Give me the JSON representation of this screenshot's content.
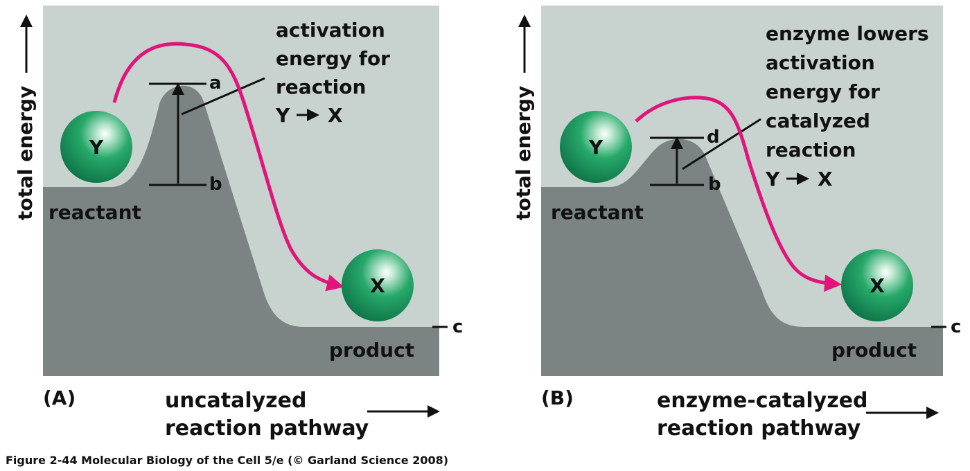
{
  "figure_caption": "Figure 2-44  Molecular Biology of the Cell 5/e (© Garland Science 2008)",
  "colors": {
    "panel_background": "#c8d2ce",
    "energy_hill": "#7b8482",
    "reaction_path": "#e0147a",
    "molecule": "#149a5c",
    "text": "#111111"
  },
  "panel_a": {
    "panel_label": "(A)",
    "y_axis_label": "total energy",
    "x_axis_label_line1": "uncatalyzed",
    "x_axis_label_line2": "reaction pathway",
    "reactant_label": "reactant",
    "product_label": "product",
    "reactant_molecule": "Y",
    "product_molecule": "X",
    "marker_top": "a",
    "marker_bottom": "b",
    "marker_product": "c",
    "annotation_lines": [
      "activation",
      "energy for",
      "reaction"
    ],
    "reaction_equation_left": "Y",
    "reaction_equation_right": "X"
  },
  "panel_b": {
    "panel_label": "(B)",
    "y_axis_label": "total energy",
    "x_axis_label_line1": "enzyme-catalyzed",
    "x_axis_label_line2": "reaction pathway",
    "reactant_label": "reactant",
    "product_label": "product",
    "reactant_molecule": "Y",
    "product_molecule": "X",
    "marker_top": "d",
    "marker_bottom": "b",
    "marker_product": "c",
    "annotation_lines": [
      "enzyme lowers",
      "activation",
      "energy for",
      "catalyzed",
      "reaction"
    ],
    "reaction_equation_left": "Y",
    "reaction_equation_right": "X"
  }
}
